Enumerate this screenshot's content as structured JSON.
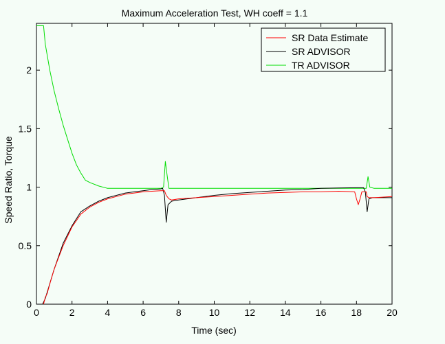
{
  "chart_data": {
    "type": "line",
    "title": "Maximum Acceleration Test, WH coeff = 1.1",
    "xlabel": "Time (sec)",
    "ylabel": "Speed Ratio, Torque",
    "xlim": [
      0,
      20
    ],
    "ylim": [
      0,
      2.4
    ],
    "xticks": [
      0,
      2,
      4,
      6,
      8,
      10,
      12,
      14,
      16,
      18,
      20
    ],
    "yticks": [
      0,
      0.5,
      1,
      1.5,
      2
    ],
    "ytick_labels": [
      "0",
      "0.5",
      "1",
      "1.5",
      "2"
    ],
    "grid": false,
    "legend_position": "top-right",
    "series": [
      {
        "name": "SR Data Estimate",
        "color": "#ff0000",
        "points": [
          [
            0.4,
            0.0
          ],
          [
            0.5,
            0.06
          ],
          [
            0.6,
            0.09
          ],
          [
            0.8,
            0.2
          ],
          [
            1.0,
            0.3
          ],
          [
            1.2,
            0.38
          ],
          [
            1.5,
            0.5
          ],
          [
            2.0,
            0.66
          ],
          [
            2.5,
            0.77
          ],
          [
            3.0,
            0.83
          ],
          [
            3.5,
            0.87
          ],
          [
            4.0,
            0.9
          ],
          [
            4.5,
            0.92
          ],
          [
            5.0,
            0.94
          ],
          [
            5.5,
            0.95
          ],
          [
            6.0,
            0.96
          ],
          [
            6.5,
            0.965
          ],
          [
            7.0,
            0.97
          ],
          [
            7.2,
            0.97
          ],
          [
            7.3,
            0.93
          ],
          [
            7.45,
            0.9
          ],
          [
            7.6,
            0.89
          ],
          [
            8.0,
            0.9
          ],
          [
            9.0,
            0.91
          ],
          [
            10.0,
            0.92
          ],
          [
            11.0,
            0.93
          ],
          [
            12.0,
            0.94
          ],
          [
            13.0,
            0.95
          ],
          [
            14.0,
            0.955
          ],
          [
            15.0,
            0.96
          ],
          [
            16.0,
            0.96
          ],
          [
            17.0,
            0.965
          ],
          [
            17.9,
            0.96
          ],
          [
            18.0,
            0.9
          ],
          [
            18.1,
            0.85
          ],
          [
            18.2,
            0.9
          ],
          [
            18.3,
            0.96
          ],
          [
            18.55,
            0.96
          ],
          [
            18.6,
            0.92
          ],
          [
            18.7,
            0.91
          ],
          [
            19.0,
            0.91
          ],
          [
            20.0,
            0.92
          ]
        ]
      },
      {
        "name": "SR ADVISOR",
        "color": "#000000",
        "points": [
          [
            0.35,
            0.0
          ],
          [
            0.5,
            0.05
          ],
          [
            0.7,
            0.15
          ],
          [
            1.0,
            0.3
          ],
          [
            1.5,
            0.52
          ],
          [
            2.0,
            0.67
          ],
          [
            2.5,
            0.79
          ],
          [
            3.0,
            0.84
          ],
          [
            3.5,
            0.88
          ],
          [
            4.0,
            0.91
          ],
          [
            4.5,
            0.93
          ],
          [
            5.0,
            0.95
          ],
          [
            5.5,
            0.96
          ],
          [
            6.0,
            0.97
          ],
          [
            6.5,
            0.98
          ],
          [
            7.0,
            0.985
          ],
          [
            7.1,
            0.99
          ],
          [
            7.2,
            0.93
          ],
          [
            7.3,
            0.7
          ],
          [
            7.4,
            0.85
          ],
          [
            7.6,
            0.88
          ],
          [
            8.0,
            0.89
          ],
          [
            9.0,
            0.91
          ],
          [
            10.0,
            0.93
          ],
          [
            11.0,
            0.945
          ],
          [
            12.0,
            0.955
          ],
          [
            13.0,
            0.965
          ],
          [
            14.0,
            0.975
          ],
          [
            15.0,
            0.98
          ],
          [
            16.0,
            0.99
          ],
          [
            17.0,
            0.993
          ],
          [
            18.0,
            0.995
          ],
          [
            18.4,
            0.995
          ],
          [
            18.5,
            0.96
          ],
          [
            18.6,
            0.79
          ],
          [
            18.7,
            0.9
          ],
          [
            18.9,
            0.91
          ],
          [
            19.5,
            0.91
          ],
          [
            20.0,
            0.91
          ]
        ]
      },
      {
        "name": "TR ADVISOR",
        "color": "#00dd00",
        "points": [
          [
            0.0,
            2.38
          ],
          [
            0.4,
            2.38
          ],
          [
            0.5,
            2.22
          ],
          [
            0.75,
            2.0
          ],
          [
            1.0,
            1.82
          ],
          [
            1.25,
            1.67
          ],
          [
            1.5,
            1.53
          ],
          [
            1.75,
            1.41
          ],
          [
            2.0,
            1.29
          ],
          [
            2.25,
            1.19
          ],
          [
            2.5,
            1.12
          ],
          [
            2.75,
            1.06
          ],
          [
            3.0,
            1.04
          ],
          [
            3.5,
            1.01
          ],
          [
            4.0,
            0.99
          ],
          [
            5.0,
            0.99
          ],
          [
            6.0,
            0.99
          ],
          [
            7.0,
            0.99
          ],
          [
            7.15,
            1.0
          ],
          [
            7.25,
            1.22
          ],
          [
            7.35,
            1.1
          ],
          [
            7.45,
            0.99
          ],
          [
            8.0,
            0.99
          ],
          [
            10.0,
            0.99
          ],
          [
            12.0,
            0.99
          ],
          [
            14.0,
            0.99
          ],
          [
            16.0,
            0.99
          ],
          [
            18.0,
            0.99
          ],
          [
            18.55,
            0.99
          ],
          [
            18.65,
            1.09
          ],
          [
            18.75,
            1.0
          ],
          [
            19.0,
            0.99
          ],
          [
            20.0,
            0.99
          ]
        ]
      }
    ]
  }
}
